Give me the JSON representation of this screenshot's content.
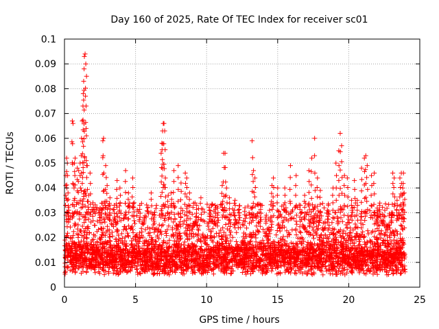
{
  "chart_data": {
    "type": "scatter",
    "title": "Day 160 of 2025, Rate Of TEC Index for receiver sc01",
    "xlabel": "GPS time / hours",
    "ylabel": "ROTI / TECUs",
    "xlim": [
      0,
      25
    ],
    "ylim": [
      0,
      0.1
    ],
    "x_ticks": [
      "0",
      "5",
      "10",
      "15",
      "20",
      "25"
    ],
    "y_ticks": [
      "0",
      "0.01",
      "0.02",
      "0.03",
      "0.04",
      "0.05",
      "0.06",
      "0.07",
      "0.08",
      "0.09",
      "0.1"
    ],
    "grid": true,
    "marker": "+",
    "color": "#ff0000",
    "series": [
      {
        "name": "sc01",
        "points": [
          [
            0.1,
            0.045
          ],
          [
            0.15,
            0.052
          ],
          [
            0.2,
            0.05
          ],
          [
            0.25,
            0.038
          ],
          [
            0.3,
            0.031
          ],
          [
            0.55,
            0.067
          ],
          [
            0.6,
            0.066
          ],
          [
            0.7,
            0.05
          ],
          [
            0.75,
            0.052
          ],
          [
            0.9,
            0.048
          ],
          [
            1.0,
            0.047
          ],
          [
            1.1,
            0.05
          ],
          [
            1.2,
            0.06
          ],
          [
            1.25,
            0.067
          ],
          [
            1.3,
            0.073
          ],
          [
            1.32,
            0.078
          ],
          [
            1.35,
            0.083
          ],
          [
            1.38,
            0.088
          ],
          [
            1.4,
            0.093
          ],
          [
            1.45,
            0.094
          ],
          [
            1.5,
            0.09
          ],
          [
            1.55,
            0.085
          ],
          [
            1.6,
            0.049
          ],
          [
            1.7,
            0.037
          ],
          [
            1.8,
            0.046
          ],
          [
            2.0,
            0.034
          ],
          [
            2.5,
            0.03
          ],
          [
            2.7,
            0.059
          ],
          [
            2.75,
            0.06
          ],
          [
            2.9,
            0.049
          ],
          [
            3.0,
            0.041
          ],
          [
            3.2,
            0.036
          ],
          [
            3.5,
            0.033
          ],
          [
            3.7,
            0.043
          ],
          [
            3.9,
            0.04
          ],
          [
            4.3,
            0.047
          ],
          [
            4.5,
            0.038
          ],
          [
            4.8,
            0.044
          ],
          [
            4.9,
            0.034
          ],
          [
            5.3,
            0.033
          ],
          [
            5.6,
            0.028
          ],
          [
            6.1,
            0.038
          ],
          [
            6.3,
            0.029
          ],
          [
            6.8,
            0.054
          ],
          [
            6.85,
            0.058
          ],
          [
            6.9,
            0.063
          ],
          [
            6.95,
            0.066
          ],
          [
            7.0,
            0.066
          ],
          [
            7.05,
            0.063
          ],
          [
            7.1,
            0.044
          ],
          [
            7.3,
            0.037
          ],
          [
            7.5,
            0.038
          ],
          [
            7.7,
            0.047
          ],
          [
            8.0,
            0.049
          ],
          [
            8.2,
            0.042
          ],
          [
            8.5,
            0.046
          ],
          [
            8.6,
            0.044
          ],
          [
            8.8,
            0.038
          ],
          [
            9.3,
            0.033
          ],
          [
            9.6,
            0.036
          ],
          [
            10.2,
            0.031
          ],
          [
            10.6,
            0.033
          ],
          [
            10.8,
            0.03
          ],
          [
            11.1,
            0.041
          ],
          [
            11.2,
            0.054
          ],
          [
            11.3,
            0.054
          ],
          [
            11.4,
            0.04
          ],
          [
            11.6,
            0.036
          ],
          [
            12.0,
            0.035
          ],
          [
            12.3,
            0.03
          ],
          [
            12.7,
            0.032
          ],
          [
            13.2,
            0.059
          ],
          [
            13.3,
            0.047
          ],
          [
            13.4,
            0.044
          ],
          [
            13.8,
            0.033
          ],
          [
            14.2,
            0.029
          ],
          [
            14.6,
            0.041
          ],
          [
            14.7,
            0.044
          ],
          [
            15.0,
            0.04
          ],
          [
            15.5,
            0.04
          ],
          [
            15.9,
            0.049
          ],
          [
            16.3,
            0.045
          ],
          [
            16.6,
            0.033
          ],
          [
            16.9,
            0.037
          ],
          [
            17.2,
            0.047
          ],
          [
            17.4,
            0.052
          ],
          [
            17.6,
            0.06
          ],
          [
            17.8,
            0.044
          ],
          [
            18.0,
            0.039
          ],
          [
            18.5,
            0.031
          ],
          [
            18.9,
            0.04
          ],
          [
            19.1,
            0.05
          ],
          [
            19.3,
            0.055
          ],
          [
            19.4,
            0.062
          ],
          [
            19.5,
            0.057
          ],
          [
            19.7,
            0.045
          ],
          [
            19.9,
            0.044
          ],
          [
            20.2,
            0.035
          ],
          [
            20.4,
            0.043
          ],
          [
            20.6,
            0.035
          ],
          [
            20.9,
            0.048
          ],
          [
            21.1,
            0.052
          ],
          [
            21.2,
            0.053
          ],
          [
            21.3,
            0.049
          ],
          [
            21.6,
            0.045
          ],
          [
            21.8,
            0.046
          ],
          [
            22.0,
            0.031
          ],
          [
            22.4,
            0.027
          ],
          [
            22.7,
            0.023
          ],
          [
            23.0,
            0.03
          ],
          [
            23.1,
            0.046
          ],
          [
            23.2,
            0.044
          ],
          [
            23.4,
            0.035
          ],
          [
            23.6,
            0.044
          ],
          [
            23.7,
            0.046
          ],
          [
            23.8,
            0.04
          ],
          [
            23.85,
            0.046
          ],
          [
            23.9,
            0.038
          ]
        ],
        "dense_band": {
          "y_min": 0.002,
          "y_base": 0.012,
          "y_spread": 0.013,
          "note": "Dense cloud of ROTI values between roughly 0.003 and 0.03 TECU/s across 0-24 h"
        }
      }
    ]
  }
}
